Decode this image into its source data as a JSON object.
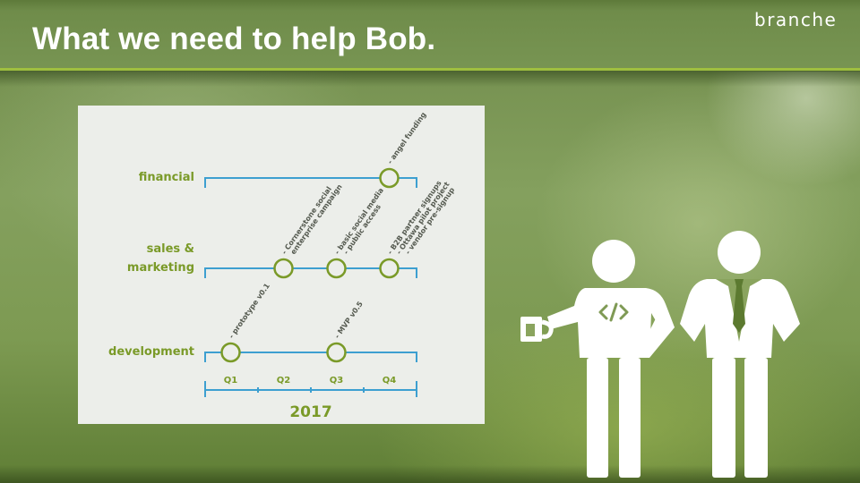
{
  "slide": {
    "title": "What we need to help Bob.",
    "brand": "branche"
  },
  "chart_data": {
    "type": "timeline",
    "year": "2017",
    "quarters": [
      "Q1",
      "Q2",
      "Q3",
      "Q4"
    ],
    "tracks": [
      {
        "label": [
          "financial"
        ],
        "milestones": [
          {
            "quarter": "Q4",
            "lines": [
              "- angel funding"
            ]
          }
        ]
      },
      {
        "label": [
          "sales &",
          "marketing"
        ],
        "milestones": [
          {
            "quarter": "Q2",
            "lines": [
              "- Cornerstone social",
              "enterprise campaign"
            ]
          },
          {
            "quarter": "Q3",
            "lines": [
              "- basic social media",
              "- public access"
            ]
          },
          {
            "quarter": "Q4",
            "lines": [
              "- B2B partner signups",
              "- Ottawa pilot project",
              "- vendor pre-signup"
            ]
          }
        ]
      },
      {
        "label": [
          "development"
        ],
        "milestones": [
          {
            "quarter": "Q1",
            "lines": [
              "- prototype v0.1"
            ]
          },
          {
            "quarter": "Q3",
            "lines": [
              "- MVP v0.5"
            ]
          }
        ]
      }
    ],
    "colors": {
      "line": "#3d9fd0",
      "milestone": "#7a9a28",
      "label": "#7a9a28",
      "axis": "#3d9fd0",
      "panel": "#eceeea"
    }
  },
  "illustration": {
    "figures": [
      "developer-figure",
      "businessman-figure"
    ],
    "shirt_code": "</>",
    "icons": [
      "coffee-mug-icon",
      "code-icon",
      "tie-icon"
    ]
  }
}
